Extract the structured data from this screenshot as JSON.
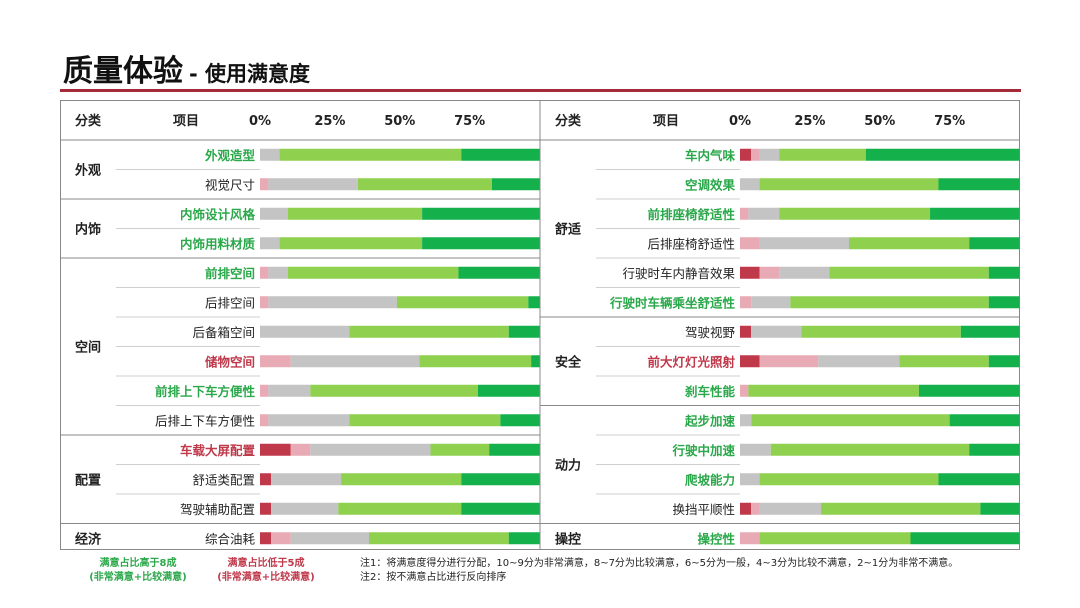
{
  "title": {
    "main": "质量体验",
    "sub": "- 使用满意度"
  },
  "colors": {
    "very_dissatisfied": "#c0394b",
    "dissatisfied": "#e8aab4",
    "neutral": "#c4c4c4",
    "satisfied": "#8fd14f",
    "very_satisfied": "#13b04b",
    "label_green": "#2aa84a",
    "label_red": "#c0394b",
    "label_normal": "#222222"
  },
  "chart_data": {
    "type": "bar",
    "orientation": "horizontal",
    "stacked": "100%",
    "xlim": [
      0,
      100
    ],
    "ticks": [
      "0%",
      "25%",
      "50%",
      "75%"
    ],
    "headers": {
      "category": "分类",
      "item": "项目"
    },
    "segment_order": [
      "非常不满意",
      "比较不满意",
      "一般",
      "比较满意",
      "非常满意"
    ],
    "panels": [
      {
        "groups": [
          {
            "name": "外观",
            "items": [
              {
                "label": "外观造型",
                "highlight": "green",
                "values": [
                  0,
                  0,
                  7,
                  65,
                  28
                ]
              },
              {
                "label": "视觉尺寸",
                "highlight": "none",
                "values": [
                  0,
                  3,
                  32,
                  48,
                  17
                ]
              }
            ]
          },
          {
            "name": "内饰",
            "items": [
              {
                "label": "内饰设计风格",
                "highlight": "green",
                "values": [
                  0,
                  0,
                  10,
                  48,
                  42
                ]
              },
              {
                "label": "内饰用料材质",
                "highlight": "green",
                "values": [
                  0,
                  0,
                  7,
                  51,
                  42
                ]
              }
            ]
          },
          {
            "name": "空间",
            "items": [
              {
                "label": "前排空间",
                "highlight": "green",
                "values": [
                  0,
                  3,
                  7,
                  61,
                  29
                ]
              },
              {
                "label": "后排空间",
                "highlight": "none",
                "values": [
                  0,
                  3,
                  46,
                  47,
                  4
                ]
              },
              {
                "label": "后备箱空间",
                "highlight": "none",
                "values": [
                  0,
                  0,
                  32,
                  57,
                  11
                ]
              },
              {
                "label": "储物空间",
                "highlight": "red",
                "values": [
                  0,
                  11,
                  46,
                  40,
                  3
                ]
              },
              {
                "label": "前排上下车方便性",
                "highlight": "green",
                "values": [
                  0,
                  3,
                  15,
                  60,
                  22
                ]
              },
              {
                "label": "后排上下车方便性",
                "highlight": "none",
                "values": [
                  0,
                  3,
                  29,
                  54,
                  14
                ]
              }
            ]
          },
          {
            "name": "配置",
            "items": [
              {
                "label": "车载大屏配置",
                "highlight": "red",
                "values": [
                  11,
                  7,
                  43,
                  21,
                  18
                ]
              },
              {
                "label": "舒适类配置",
                "highlight": "none",
                "values": [
                  4,
                  0,
                  25,
                  43,
                  28
                ]
              },
              {
                "label": "驾驶辅助配置",
                "highlight": "none",
                "values": [
                  4,
                  0,
                  24,
                  44,
                  28
                ]
              }
            ]
          },
          {
            "name": "经济",
            "items": [
              {
                "label": "综合油耗",
                "highlight": "none",
                "values": [
                  4,
                  7,
                  28,
                  50,
                  11
                ]
              }
            ]
          }
        ]
      },
      {
        "groups": [
          {
            "name": "舒适",
            "items": [
              {
                "label": "车内气味",
                "highlight": "green",
                "values": [
                  4,
                  3,
                  7,
                  31,
                  55
                ]
              },
              {
                "label": "空调效果",
                "highlight": "green",
                "values": [
                  0,
                  0,
                  7,
                  64,
                  29
                ]
              },
              {
                "label": "前排座椅舒适性",
                "highlight": "green",
                "values": [
                  0,
                  3,
                  11,
                  54,
                  32
                ]
              },
              {
                "label": "后排座椅舒适性",
                "highlight": "none",
                "values": [
                  0,
                  7,
                  32,
                  43,
                  18
                ]
              },
              {
                "label": "行驶时车内静音效果",
                "highlight": "none",
                "values": [
                  7,
                  7,
                  18,
                  57,
                  11
                ]
              },
              {
                "label": "行驶时车辆乘坐舒适性",
                "highlight": "green",
                "values": [
                  0,
                  4,
                  14,
                  71,
                  11
                ]
              }
            ]
          },
          {
            "name": "安全",
            "items": [
              {
                "label": "驾驶视野",
                "highlight": "none",
                "values": [
                  4,
                  0,
                  18,
                  57,
                  21
                ]
              },
              {
                "label": "前大灯灯光照射",
                "highlight": "red",
                "values": [
                  7,
                  21,
                  29,
                  32,
                  11
                ]
              },
              {
                "label": "刹车性能",
                "highlight": "green",
                "values": [
                  0,
                  3,
                  0,
                  61,
                  36
                ]
              }
            ]
          },
          {
            "name": "动力",
            "items": [
              {
                "label": "起步加速",
                "highlight": "green",
                "values": [
                  0,
                  0,
                  4,
                  71,
                  25
                ]
              },
              {
                "label": "行驶中加速",
                "highlight": "green",
                "values": [
                  0,
                  0,
                  11,
                  71,
                  18
                ]
              },
              {
                "label": "爬坡能力",
                "highlight": "green",
                "values": [
                  0,
                  0,
                  7,
                  64,
                  29
                ]
              },
              {
                "label": "换挡平顺性",
                "highlight": "none",
                "values": [
                  4,
                  3,
                  22,
                  57,
                  14
                ]
              }
            ]
          },
          {
            "name": "操控",
            "items": [
              {
                "label": "操控性",
                "highlight": "green",
                "values": [
                  0,
                  7,
                  0,
                  54,
                  39
                ]
              }
            ]
          }
        ]
      }
    ]
  },
  "legend": {
    "green_line1": "满意占比高于8成",
    "green_line2": "(非常满意+比较满意)",
    "red_line1": "满意占比低于5成",
    "red_line2": "(非常满意+比较满意)"
  },
  "notes": {
    "note1": "注1：将满意度得分进行分配，10~9分为非常满意，8~7分为比较满意，6~5分为一般，4~3分为比较不满意，2~1分为非常不满意。",
    "note2": "注2：按不满意占比进行反向排序"
  }
}
